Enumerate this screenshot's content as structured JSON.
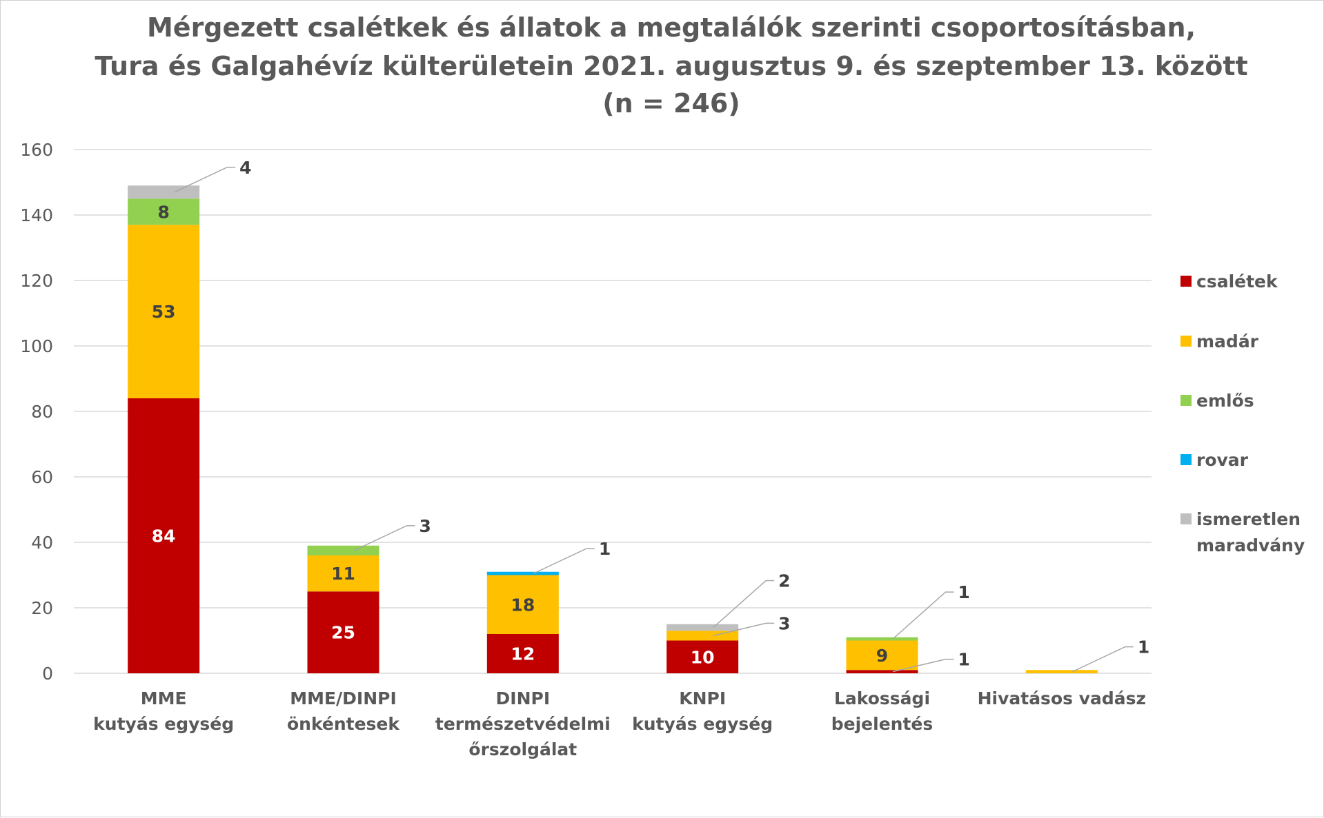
{
  "chart_data": {
    "type": "bar",
    "stacked": true,
    "title": [
      "Mérgezett csalétkek és állatok a megtalálók szerinti csoportosításban,",
      "Tura és Galgahévíz külterületein 2021. augusztus 9. és szeptember 13. között",
      "(n = 246)"
    ],
    "xlabel": "",
    "ylabel": "",
    "ylim": [
      0,
      160
    ],
    "yticks": [
      "0",
      "20",
      "40",
      "60",
      "80",
      "100",
      "120",
      "140",
      "160"
    ],
    "grid": true,
    "legend_position": "right",
    "categories": [
      [
        "MME",
        "kutyás egység"
      ],
      [
        "MME/DINPI",
        "önkéntesek"
      ],
      [
        "DINPI",
        "természetvédelmi",
        "őrszolgálat"
      ],
      [
        "KNPI",
        "kutyás egység"
      ],
      [
        "Lakossági",
        "bejelentés"
      ],
      [
        "Hivatásos vadász"
      ]
    ],
    "series": [
      {
        "name": "csalétek",
        "color": "#C00000",
        "values": [
          84,
          25,
          12,
          10,
          1,
          0
        ],
        "labels": [
          "84",
          "25",
          "12",
          "10",
          "1",
          ""
        ]
      },
      {
        "name": "madár",
        "color": "#FFC000",
        "values": [
          53,
          11,
          18,
          3,
          9,
          1
        ],
        "labels": [
          "53",
          "11",
          "18",
          "3",
          "9",
          "1"
        ]
      },
      {
        "name": "emlős",
        "color": "#92D050",
        "values": [
          8,
          3,
          0,
          0,
          1,
          0
        ],
        "labels": [
          "8",
          "3",
          "",
          "",
          "1",
          ""
        ]
      },
      {
        "name": "rovar",
        "color": "#00B0F0",
        "values": [
          0,
          0,
          1,
          0,
          0,
          0
        ],
        "labels": [
          "",
          "",
          "1",
          "",
          "",
          ""
        ]
      },
      {
        "name": [
          "ismeretlen",
          "maradvány"
        ],
        "color": "#BFBFBF",
        "values": [
          4,
          0,
          0,
          2,
          0,
          0
        ],
        "labels": [
          "4",
          "",
          "",
          "2",
          "",
          ""
        ]
      }
    ]
  }
}
